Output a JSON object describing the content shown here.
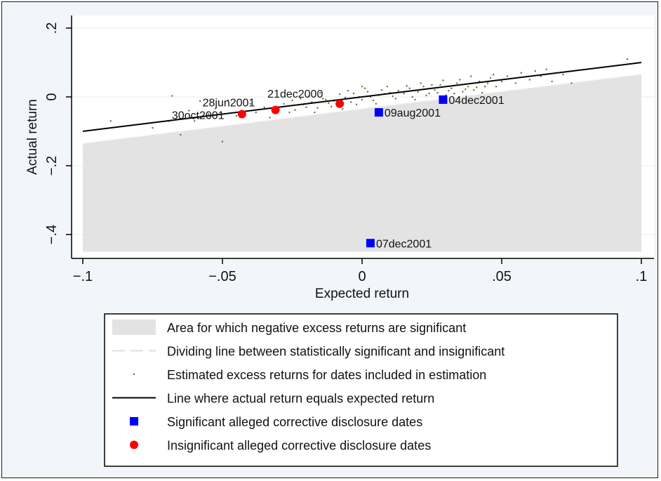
{
  "chart_data": {
    "type": "scatter",
    "xlabel": "Expected return",
    "ylabel": "Actual return",
    "xlim": [
      -0.1,
      0.1
    ],
    "ylim": [
      -0.45,
      0.2
    ],
    "x_ticks": [
      {
        "value": -0.1,
        "label": "−.1"
      },
      {
        "value": -0.05,
        "label": "−.05"
      },
      {
        "value": 0,
        "label": "0"
      },
      {
        "value": 0.05,
        "label": ".05"
      },
      {
        "value": 0.1,
        "label": ".1"
      }
    ],
    "y_ticks": [
      {
        "value": 0.2,
        "label": ".2"
      },
      {
        "value": 0,
        "label": "0"
      },
      {
        "value": -0.2,
        "label": "−.2"
      },
      {
        "value": -0.4,
        "label": "−.4"
      }
    ],
    "grid": true,
    "significance_region": {
      "dividing_line": [
        [
          -0.1,
          -0.135
        ],
        [
          0.1,
          0.066
        ]
      ],
      "floor": -0.45
    },
    "equality_line": [
      [
        -0.1,
        -0.1
      ],
      [
        0.1,
        0.1
      ]
    ],
    "estimation_points": [
      [
        -0.068,
        0.003
      ],
      [
        -0.062,
        -0.04
      ],
      [
        -0.058,
        -0.012
      ],
      [
        -0.055,
        -0.05
      ],
      [
        -0.05,
        -0.13
      ],
      [
        -0.048,
        -0.01
      ],
      [
        -0.045,
        -0.055
      ],
      [
        -0.069,
        -0.07
      ],
      [
        -0.035,
        -0.03
      ],
      [
        -0.033,
        -0.06
      ],
      [
        -0.028,
        -0.02
      ],
      [
        -0.026,
        -0.045
      ],
      [
        -0.022,
        -0.005
      ],
      [
        -0.02,
        -0.03
      ],
      [
        -0.018,
        -0.015
      ],
      [
        -0.016,
        -0.032
      ],
      [
        -0.014,
        -0.005
      ],
      [
        -0.012,
        -0.018
      ],
      [
        -0.01,
        -0.012
      ],
      [
        -0.008,
        0.008
      ],
      [
        -0.006,
        -0.002
      ],
      [
        -0.004,
        -0.015
      ],
      [
        -0.003,
        0.01
      ],
      [
        -0.001,
        0.0
      ],
      [
        0.0,
        -0.008
      ],
      [
        0.002,
        0.015
      ],
      [
        0.003,
        0.0
      ],
      [
        0.004,
        -0.01
      ],
      [
        0.006,
        0.005
      ],
      [
        0.007,
        0.02
      ],
      [
        0.008,
        0.008
      ],
      [
        0.01,
        0.012
      ],
      [
        0.012,
        -0.005
      ],
      [
        0.013,
        0.018
      ],
      [
        0.015,
        0.01
      ],
      [
        0.017,
        0.025
      ],
      [
        0.018,
        0.0
      ],
      [
        0.02,
        0.015
      ],
      [
        0.022,
        0.03
      ],
      [
        0.024,
        0.01
      ],
      [
        0.026,
        0.02
      ],
      [
        0.028,
        0.035
      ],
      [
        0.03,
        0.005
      ],
      [
        0.032,
        0.025
      ],
      [
        0.034,
        0.04
      ],
      [
        0.036,
        0.015
      ],
      [
        0.038,
        0.03
      ],
      [
        0.04,
        0.02
      ],
      [
        0.042,
        0.045
      ],
      [
        0.044,
        0.03
      ],
      [
        0.046,
        0.055
      ],
      [
        0.048,
        0.03
      ],
      [
        0.05,
        0.045
      ],
      [
        0.052,
        0.06
      ],
      [
        0.055,
        0.04
      ],
      [
        0.057,
        0.07
      ],
      [
        0.06,
        0.05
      ],
      [
        0.062,
        0.075
      ],
      [
        0.064,
        0.06
      ],
      [
        0.066,
        0.08
      ],
      [
        0.068,
        0.045
      ],
      [
        0.072,
        0.065
      ],
      [
        0.095,
        0.11
      ],
      [
        -0.025,
        -0.01
      ],
      [
        -0.03,
        -0.035
      ],
      [
        -0.038,
        -0.045
      ],
      [
        -0.04,
        -0.02
      ],
      [
        -0.043,
        -0.06
      ],
      [
        -0.015,
        0.012
      ],
      [
        -0.011,
        -0.028
      ],
      [
        0.001,
        0.025
      ],
      [
        0.005,
        -0.02
      ],
      [
        0.009,
        0.03
      ],
      [
        0.011,
        0.002
      ],
      [
        0.016,
        0.032
      ],
      [
        0.019,
        -0.008
      ],
      [
        0.021,
        0.04
      ],
      [
        0.023,
        0.004
      ],
      [
        0.025,
        0.035
      ],
      [
        0.027,
        0.012
      ],
      [
        0.029,
        0.048
      ],
      [
        0.031,
        0.018
      ],
      [
        0.033,
        0.01
      ],
      [
        0.035,
        0.05
      ],
      [
        0.037,
        0.022
      ],
      [
        0.039,
        0.06
      ],
      [
        0.041,
        0.028
      ],
      [
        0.043,
        0.012
      ],
      [
        0.045,
        0.04
      ],
      [
        0.047,
        0.065
      ],
      [
        -0.024,
        -0.038
      ],
      [
        -0.021,
        -0.022
      ],
      [
        -0.019,
        0.002
      ],
      [
        -0.017,
        -0.045
      ],
      [
        -0.013,
        -0.008
      ],
      [
        -0.009,
        -0.025
      ],
      [
        -0.007,
        -0.035
      ],
      [
        -0.005,
        0.018
      ],
      [
        -0.002,
        -0.022
      ],
      [
        0.0,
        0.03
      ],
      [
        -0.09,
        -0.07
      ],
      [
        -0.075,
        -0.09
      ],
      [
        -0.065,
        -0.11
      ],
      [
        -0.06,
        -0.07
      ],
      [
        0.075,
        0.04
      ]
    ],
    "significant_dates": [
      {
        "label": "04dec2001",
        "x": 0.029,
        "y": -0.008
      },
      {
        "label": "09aug2001",
        "x": 0.006,
        "y": -0.045
      },
      {
        "label": "07dec2001",
        "x": 0.003,
        "y": -0.425
      }
    ],
    "insignificant_dates": [
      {
        "label": "21dec2000",
        "x": -0.008,
        "y": -0.02
      },
      {
        "label": "28jun2001",
        "x": -0.031,
        "y": -0.038
      },
      {
        "label": "30oct2001",
        "x": -0.043,
        "y": -0.05
      }
    ],
    "legend": {
      "placement": "bottom",
      "entries": [
        {
          "kind": "area",
          "label": "Area for which negative excess returns are significant"
        },
        {
          "kind": "dashed",
          "label": "Dividing line between statistically significant and insignificant"
        },
        {
          "kind": "dot",
          "label": "Estimated excess returns for dates included in estimation"
        },
        {
          "kind": "line",
          "label": "Line where actual return equals expected return"
        },
        {
          "kind": "square",
          "label": "Significant alleged corrective disclosure dates"
        },
        {
          "kind": "circle",
          "label": "Insignificant alleged corrective disclosure dates"
        }
      ]
    },
    "colors": {
      "region": "#e3e3e3",
      "scatter": "#4e7a2b",
      "line": "#000000",
      "significant": "#0000ff",
      "insignificant": "#ff0000",
      "plot_bg": "#ffffff",
      "outer_bg": "#f2f6fb",
      "grid": "#eaf2f3"
    }
  }
}
